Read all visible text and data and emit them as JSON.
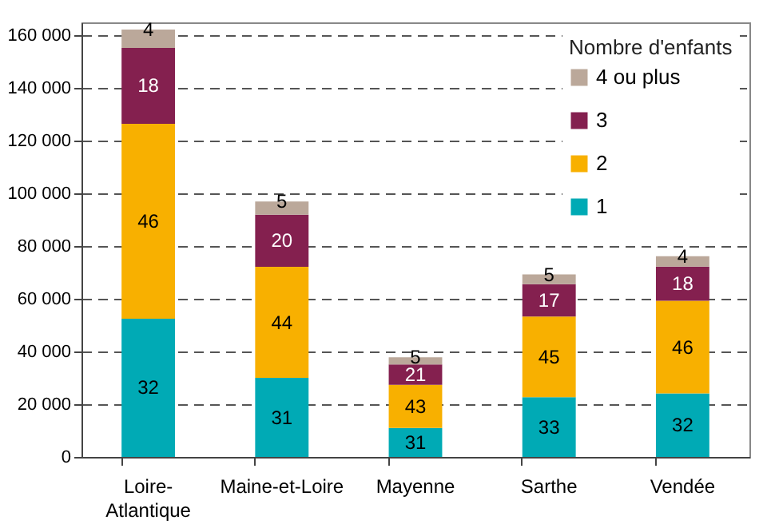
{
  "chart_data": {
    "type": "bar",
    "stacked": true,
    "legend_title": "Nombre d'enfants",
    "legend": "top right",
    "grid": "y",
    "categories": [
      "Loire-Atlantique",
      "Maine-et-Loire",
      "Mayenne",
      "Sarthe",
      "Vendée"
    ],
    "series": [
      {
        "name": "1",
        "color": "#00aab5",
        "values": [
          52500,
          30000,
          11000,
          22700,
          24100
        ]
      },
      {
        "name": "2",
        "color": "#f8b000",
        "values": [
          74000,
          42200,
          16400,
          30600,
          35200
        ]
      },
      {
        "name": "3",
        "color": "#84204f",
        "values": [
          28800,
          19800,
          7700,
          12300,
          13000
        ]
      },
      {
        "name": "4 ou plus",
        "color": "#bba89a",
        "values": [
          7000,
          5000,
          2700,
          3700,
          3900
        ]
      }
    ],
    "annotations": [
      "32",
      "46",
      "18",
      "4",
      "31",
      "44",
      "20",
      "5",
      "31",
      "43",
      "21",
      "5",
      "33",
      "45",
      "17",
      "5",
      "32",
      "46",
      "18",
      "4"
    ],
    "ylim": [
      0,
      165000
    ],
    "yticks": [
      {
        "value": 0,
        "label": "0"
      },
      {
        "value": 20000,
        "label": "20 000"
      },
      {
        "value": 40000,
        "label": "40 000"
      },
      {
        "value": 60000,
        "label": "60 000"
      },
      {
        "value": 80000,
        "label": "80 000"
      },
      {
        "value": 100000,
        "label": "100 000"
      },
      {
        "value": 120000,
        "label": "120 000"
      },
      {
        "value": 140000,
        "label": "140 000"
      },
      {
        "value": 160000,
        "label": "160 000"
      }
    ]
  }
}
